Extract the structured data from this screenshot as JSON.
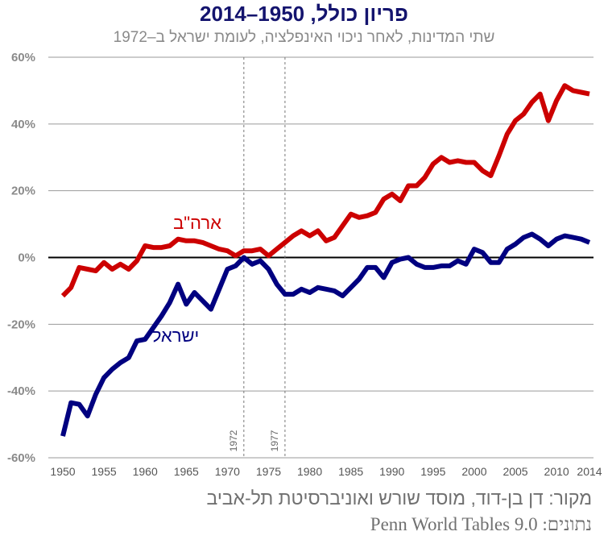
{
  "header": {
    "title": "פריון כולל, 1950–2014",
    "subtitle": "שתי המדינות, לאחר ניכוי האינפלציה, לעומת ישראל ב–1972"
  },
  "footer": {
    "source": "מקור:  דן בן-דוד, מוסד שורש ואוניברסיטת תל-אביב",
    "data_credit": "נתונים: Penn World Tables 9.0"
  },
  "colors": {
    "usa": "#cc0000",
    "israel": "#000080",
    "grid": "#9a9a9a",
    "zero_line": "#000000",
    "marker_line": "#777777"
  },
  "chart_data": {
    "type": "line",
    "title": "פריון כולל, 1950–2014",
    "subtitle": "שתי המדינות, לאחר ניכוי האינפלציה, לעומת ישראל ב–1972",
    "xlabel": "",
    "ylabel": "",
    "xlim": [
      1948,
      2014
    ],
    "ylim": [
      -60,
      60
    ],
    "grid": true,
    "y_ticks": [
      {
        "value": 60,
        "label": "60%"
      },
      {
        "value": 40,
        "label": "40%"
      },
      {
        "value": 20,
        "label": "20%"
      },
      {
        "value": 0,
        "label": "0%"
      },
      {
        "value": -20,
        "label": "-20%"
      },
      {
        "value": -40,
        "label": "-40%"
      },
      {
        "value": -60,
        "label": "-60%"
      }
    ],
    "x_ticks": [
      {
        "value": 1950,
        "label": "1950"
      },
      {
        "value": 1955,
        "label": "1955"
      },
      {
        "value": 1960,
        "label": "1960"
      },
      {
        "value": 1965,
        "label": "1965"
      },
      {
        "value": 1970,
        "label": "1970"
      },
      {
        "value": 1975,
        "label": "1975"
      },
      {
        "value": 1980,
        "label": "1980"
      },
      {
        "value": 1985,
        "label": "1985"
      },
      {
        "value": 1990,
        "label": "1990"
      },
      {
        "value": 1995,
        "label": "1995"
      },
      {
        "value": 2000,
        "label": "2000"
      },
      {
        "value": 2005,
        "label": "2005"
      },
      {
        "value": 2010,
        "label": "2010"
      },
      {
        "value": 2014,
        "label": "2014"
      }
    ],
    "reference_lines": [
      {
        "x": 1972,
        "label": "1972"
      },
      {
        "x": 1977,
        "label": "1977"
      }
    ],
    "x": [
      1950,
      1951,
      1952,
      1953,
      1954,
      1955,
      1956,
      1957,
      1958,
      1959,
      1960,
      1961,
      1962,
      1963,
      1964,
      1965,
      1966,
      1967,
      1968,
      1969,
      1970,
      1971,
      1972,
      1973,
      1974,
      1975,
      1976,
      1977,
      1978,
      1979,
      1980,
      1981,
      1982,
      1983,
      1984,
      1985,
      1986,
      1987,
      1988,
      1989,
      1990,
      1991,
      1992,
      1993,
      1994,
      1995,
      1996,
      1997,
      1998,
      1999,
      2000,
      2001,
      2002,
      2003,
      2004,
      2005,
      2006,
      2007,
      2008,
      2009,
      2010,
      2011,
      2012,
      2013,
      2014
    ],
    "series": [
      {
        "name": "ארה\"ב",
        "color": "#cc0000",
        "values": [
          -11.5,
          -9,
          -3,
          -3.5,
          -4,
          -1.5,
          -3.5,
          -2,
          -3.5,
          -1,
          3.5,
          3,
          3,
          3.5,
          5.5,
          5,
          5,
          4.5,
          3.5,
          2.5,
          2,
          0.5,
          2,
          2,
          2.5,
          0.5,
          2.5,
          4.5,
          6.5,
          8,
          6.5,
          8,
          5,
          6,
          9.5,
          13,
          12,
          12.5,
          13.5,
          17.5,
          19,
          17,
          21.5,
          21.5,
          24,
          28,
          30,
          28.5,
          29,
          28.5,
          28.5,
          26,
          24.5,
          30.5,
          37,
          41,
          43,
          46.5,
          49,
          41,
          47,
          51.5,
          50,
          49.5,
          49
        ]
      },
      {
        "name": "ישראל",
        "color": "#000080",
        "values": [
          -53.5,
          -43.5,
          -44,
          -47.5,
          -41,
          -36,
          -33.5,
          -31.5,
          -30,
          -25,
          -24.5,
          -21,
          -17.5,
          -13.5,
          -8,
          -14,
          -10.5,
          -13,
          -15.5,
          -9.5,
          -3.5,
          -2.5,
          0,
          -2,
          -1,
          -3.5,
          -8,
          -11,
          -11,
          -9.5,
          -10.5,
          -9,
          -9.5,
          -10,
          -11.5,
          -9,
          -6.5,
          -3,
          -3,
          -6,
          -1.5,
          -0.5,
          0,
          -2,
          -3,
          -3,
          -2.5,
          -2.5,
          -1,
          -2,
          2.5,
          1.5,
          -1.5,
          -1.5,
          2.5,
          4,
          6,
          7,
          5.5,
          3.5,
          5.5,
          6.5,
          6,
          5.5,
          4.5
        ]
      }
    ]
  }
}
